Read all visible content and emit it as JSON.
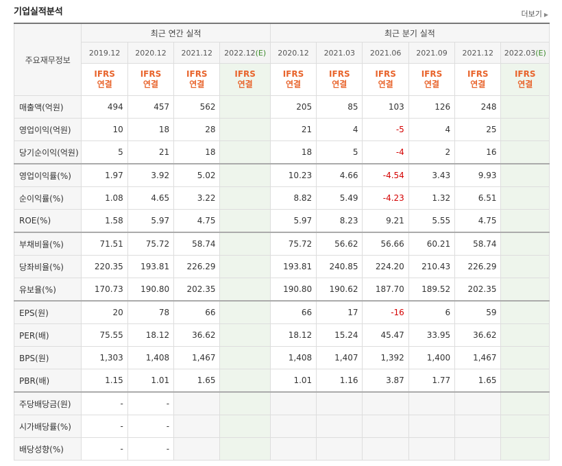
{
  "header": {
    "title": "기업실적분석",
    "more_label": "더보기"
  },
  "table": {
    "row_header_label": "주요재무정보",
    "annual_group_label": "최근 연간 실적",
    "quarter_group_label": "최근 분기 실적",
    "columns": [
      {
        "date": "2019.12",
        "estimate": false
      },
      {
        "date": "2020.12",
        "estimate": false
      },
      {
        "date": "2021.12",
        "estimate": false
      },
      {
        "date": "2022.12",
        "estimate": true,
        "estimate_tag": "(E)"
      },
      {
        "date": "2020.12",
        "estimate": false
      },
      {
        "date": "2021.03",
        "estimate": false
      },
      {
        "date": "2021.06",
        "estimate": false
      },
      {
        "date": "2021.09",
        "estimate": false
      },
      {
        "date": "2021.12",
        "estimate": false
      },
      {
        "date": "2022.03",
        "estimate": true,
        "estimate_tag": "(E)"
      }
    ],
    "ifrs_line1": "IFRS",
    "ifrs_line2": "연결",
    "rows": [
      {
        "label": "매출액(억원)",
        "values": [
          "494",
          "457",
          "562",
          "",
          "205",
          "85",
          "103",
          "126",
          "248",
          ""
        ]
      },
      {
        "label": "영업이익(억원)",
        "values": [
          "10",
          "18",
          "28",
          "",
          "21",
          "4",
          "-5",
          "4",
          "25",
          ""
        ]
      },
      {
        "label": "당기순이익(억원)",
        "values": [
          "5",
          "21",
          "18",
          "",
          "18",
          "5",
          "-4",
          "2",
          "16",
          ""
        ]
      },
      {
        "label": "영업이익률(%)",
        "values": [
          "1.97",
          "3.92",
          "5.02",
          "",
          "10.23",
          "4.66",
          "-4.54",
          "3.43",
          "9.93",
          ""
        ]
      },
      {
        "label": "순이익률(%)",
        "values": [
          "1.08",
          "4.65",
          "3.22",
          "",
          "8.82",
          "5.49",
          "-4.23",
          "1.32",
          "6.51",
          ""
        ]
      },
      {
        "label": "ROE(%)",
        "values": [
          "1.58",
          "5.97",
          "4.75",
          "",
          "5.97",
          "8.23",
          "9.21",
          "5.55",
          "4.75",
          ""
        ]
      },
      {
        "label": "부채비율(%)",
        "values": [
          "71.51",
          "75.72",
          "58.74",
          "",
          "75.72",
          "56.62",
          "56.66",
          "60.21",
          "58.74",
          ""
        ]
      },
      {
        "label": "당좌비율(%)",
        "values": [
          "220.35",
          "193.81",
          "226.29",
          "",
          "193.81",
          "240.85",
          "224.20",
          "210.43",
          "226.29",
          ""
        ]
      },
      {
        "label": "유보율(%)",
        "values": [
          "170.73",
          "190.80",
          "202.35",
          "",
          "190.80",
          "190.62",
          "187.70",
          "189.52",
          "202.35",
          ""
        ]
      },
      {
        "label": "EPS(원)",
        "values": [
          "20",
          "78",
          "66",
          "",
          "66",
          "17",
          "-16",
          "6",
          "59",
          ""
        ]
      },
      {
        "label": "PER(배)",
        "values": [
          "75.55",
          "18.12",
          "36.62",
          "",
          "18.12",
          "15.24",
          "45.47",
          "33.95",
          "36.62",
          ""
        ]
      },
      {
        "label": "BPS(원)",
        "values": [
          "1,303",
          "1,408",
          "1,467",
          "",
          "1,408",
          "1,407",
          "1,392",
          "1,400",
          "1,467",
          ""
        ]
      },
      {
        "label": "PBR(배)",
        "values": [
          "1.15",
          "1.01",
          "1.65",
          "",
          "1.01",
          "1.16",
          "3.87",
          "1.77",
          "1.65",
          ""
        ]
      },
      {
        "label": "주당배당금(원)",
        "values": [
          "-",
          "-",
          "",
          "",
          "",
          "",
          "",
          "",
          "",
          ""
        ]
      },
      {
        "label": "시가배당률(%)",
        "values": [
          "-",
          "-",
          "",
          "",
          "",
          "",
          "",
          "",
          "",
          ""
        ]
      },
      {
        "label": "배당성향(%)",
        "values": [
          "-",
          "-",
          "",
          "",
          "",
          "",
          "",
          "",
          "",
          ""
        ]
      }
    ]
  },
  "colors": {
    "ifrs_text": "#e8642c",
    "negative": "#d40000",
    "estimate_bg": "#eef5ec",
    "estimate_tag": "#3a8a2a"
  }
}
